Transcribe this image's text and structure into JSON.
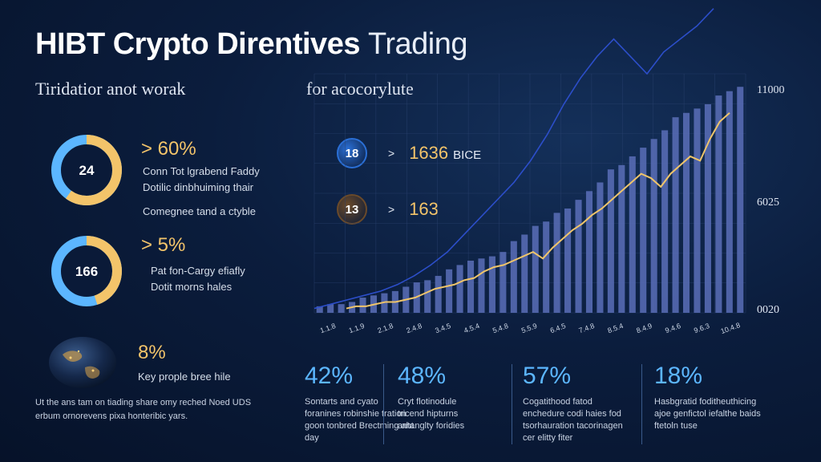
{
  "header": {
    "title_bold": "HIBT Crypto Direntives",
    "title_light": "Trading",
    "subtitle_left": "Tiridatior anot worak",
    "subtitle_right": "for acocorylute"
  },
  "stats": [
    {
      "donut_label": "24",
      "fraction": 0.6,
      "pct": "> 60%",
      "lines": [
        "Conn Tot lgrabend Faddy",
        "Dotilic dinbhuiming thair",
        "Comegnee tand a ctyble"
      ]
    },
    {
      "donut_label": "166",
      "fraction": 0.45,
      "pct": "> 5%",
      "lines": [
        "Pat fon-Cargy efiafly",
        "Dotit morns hales"
      ]
    },
    {
      "donut_label": "",
      "fraction": 0,
      "pct": "8%",
      "lines": [
        "Key prople bree hile"
      ]
    }
  ],
  "badges": [
    {
      "label": "18",
      "value": "1636",
      "suffix": "BICE",
      "color": "#2a6fd6"
    },
    {
      "label": "13",
      "value": "163",
      "suffix": "",
      "color": "#6a4a2a"
    }
  ],
  "arrow_glyph": ">",
  "footer_text": "Ut the ans tam on tiading share omy reched Noed UDS erbum ornorevens pixa honteribic yars.",
  "bottom_stats": [
    {
      "pct": "42%",
      "text": "Sontarts and cyato foranines robinshie tration goon tonbred Brectming aht day"
    },
    {
      "pct": "48%",
      "text": "Cryt flotinodule tricend hipturns antanglty foridies"
    },
    {
      "pct": "57%",
      "text": "Cogatithood fatod enchedure codi haies fod tsorhauration tacorinagen cer elitty fiter"
    },
    {
      "pct": "18%",
      "text": "Hasbgratid foditheuthicing ajoe genfictol iefalthe baids ftetoln tuse"
    }
  ],
  "chart_data": {
    "type": "bar",
    "y_tick_labels": [
      "11000",
      "6025",
      "0020"
    ],
    "x_tick_labels": [
      "1.1.8",
      "1.1.9",
      "2.1.8",
      "2.4.8",
      "3.4.5",
      "4.5.4",
      "5.4.8",
      "5.5.9",
      "6.4.5",
      "7.4.8",
      "8.5.4",
      "8.4.9",
      "9.4.6",
      "9.6.3",
      "10.4.8"
    ],
    "bars": [
      3,
      4,
      4,
      5,
      7,
      8,
      9,
      10,
      12,
      14,
      15,
      17,
      20,
      22,
      24,
      25,
      26,
      28,
      33,
      36,
      40,
      42,
      46,
      48,
      52,
      56,
      60,
      66,
      68,
      72,
      76,
      80,
      84,
      90,
      92,
      94,
      96,
      100,
      102,
      104
    ],
    "gold_line": [
      2,
      3,
      3,
      4,
      5,
      5,
      6,
      7,
      9,
      11,
      12,
      13,
      15,
      16,
      19,
      21,
      22,
      24,
      26,
      28,
      25,
      30,
      34,
      38,
      41,
      45,
      48,
      52,
      56,
      60,
      64,
      62,
      58,
      64,
      68,
      72,
      70,
      80,
      88,
      92
    ],
    "blue_line": [
      2,
      4,
      6,
      8,
      10,
      13,
      17,
      22,
      28,
      36,
      44,
      52,
      60,
      70,
      82,
      96,
      108,
      118,
      126,
      118,
      110,
      120,
      126,
      132,
      140
    ],
    "ylim": [
      0,
      110
    ],
    "colors": {
      "bar": "#5a6fb8",
      "gold": "#f0c56a",
      "blue": "#2c4ec9",
      "grid": "#2a4270",
      "donut_blue": "#5cb6ff",
      "donut_gold": "#f3c46a"
    }
  }
}
